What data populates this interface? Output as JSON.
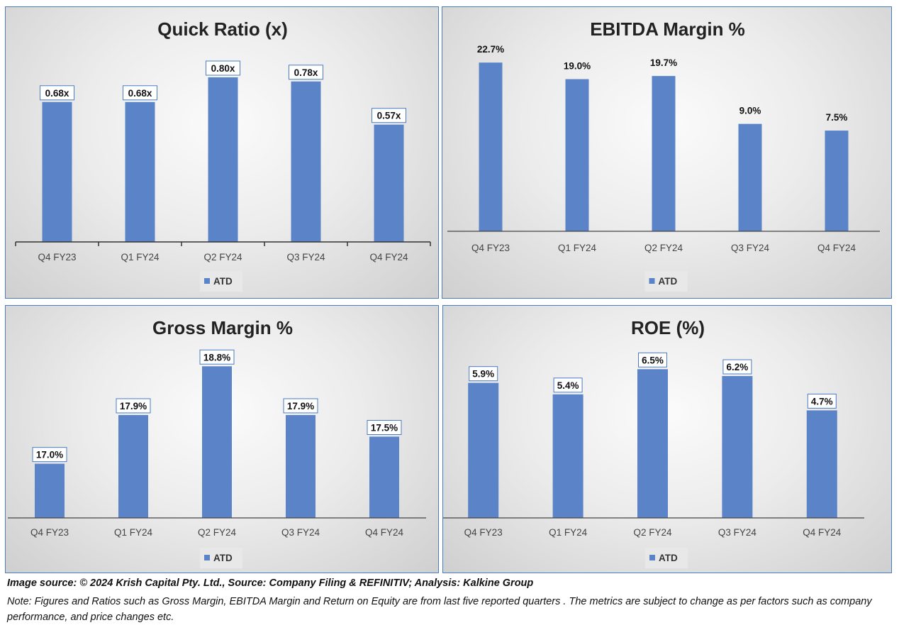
{
  "chart_data": [
    {
      "type": "bar",
      "title": "Quick Ratio (x)",
      "categories": [
        "Q4 FY23",
        "Q1 FY24",
        "Q2 FY24",
        "Q3 FY24",
        "Q4 FY24"
      ],
      "series": [
        {
          "name": "ATD",
          "values": [
            0.68,
            0.68,
            0.8,
            0.78,
            0.57
          ]
        }
      ],
      "labels": [
        "0.68x",
        "0.68x",
        "0.80x",
        "0.78x",
        "0.57x"
      ],
      "ylim": [
        0,
        0.9
      ],
      "label_boxes": true,
      "color": "#5b84c8",
      "legend": "bottom",
      "grid": false
    },
    {
      "type": "bar",
      "title": "EBITDA Margin %",
      "categories": [
        "Q4 FY23",
        "Q1 FY24",
        "Q2 FY24",
        "Q3 FY24",
        "Q4 FY24"
      ],
      "series": [
        {
          "name": "ATD",
          "values": [
            22.7,
            19.0,
            19.7,
            9.0,
            7.5
          ]
        }
      ],
      "labels": [
        "22.7%",
        "19.0%",
        "19.7%",
        "9.0%",
        "7.5%"
      ],
      "ylim": [
        -15,
        24
      ],
      "label_boxes": false,
      "color": "#5b84c8",
      "legend": "bottom",
      "grid": false
    },
    {
      "type": "bar",
      "title": "Gross Margin %",
      "categories": [
        "Q4 FY23",
        "Q1 FY24",
        "Q2 FY24",
        "Q3 FY24",
        "Q4 FY24"
      ],
      "series": [
        {
          "name": "ATD",
          "values": [
            17.0,
            17.9,
            18.8,
            17.9,
            17.5
          ]
        }
      ],
      "labels": [
        "17.0%",
        "17.9%",
        "18.8%",
        "17.9%",
        "17.5%"
      ],
      "ylim": [
        16,
        19
      ],
      "label_boxes": true,
      "color": "#5b84c8",
      "legend": "bottom",
      "grid": false
    },
    {
      "type": "bar",
      "title": "ROE (%)",
      "categories": [
        "Q4 FY23",
        "Q1 FY24",
        "Q2 FY24",
        "Q3 FY24",
        "Q4 FY24"
      ],
      "series": [
        {
          "name": "ATD",
          "values": [
            5.9,
            5.4,
            6.5,
            6.2,
            4.7
          ]
        }
      ],
      "labels": [
        "5.9%",
        "5.4%",
        "6.5%",
        "6.2%",
        "4.7%"
      ],
      "ylim": [
        0,
        7.1
      ],
      "label_boxes": true,
      "color": "#5b84c8",
      "legend": "bottom",
      "grid": false
    }
  ],
  "footer": {
    "source": "Image source: © 2024 Krish Capital Pty. Ltd., Source: Company Filing & REFINITIV; Analysis: Kalkine Group",
    "note": "Note: Figures and Ratios such as  Gross Margin, EBITDA Margin and Return on Equity are from last   five reported  quarters . The metrics are subject to change as per factors such as company performance, and price changes etc."
  }
}
